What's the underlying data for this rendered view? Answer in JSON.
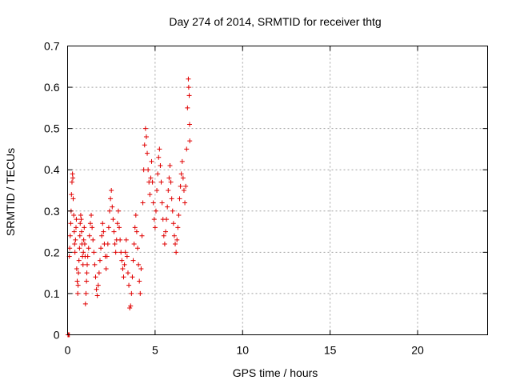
{
  "chart_data": {
    "type": "scatter",
    "title": "Day 274 of 2014, SRMTID for receiver thtg",
    "xlabel": "GPS time / hours",
    "ylabel": "SRMTID / TECUs",
    "xlim": [
      0,
      24
    ],
    "ylim": [
      0,
      0.7
    ],
    "xticks": [
      0,
      5,
      10,
      15,
      20
    ],
    "xtick_labels": [
      "0",
      "5",
      "10",
      "15",
      "20"
    ],
    "yticks": [
      0,
      0.1,
      0.2,
      0.3,
      0.4,
      0.5,
      0.6,
      0.7
    ],
    "ytick_labels": [
      "0",
      "0.1",
      "0.2",
      "0.3",
      "0.4",
      "0.5",
      "0.6",
      "0.7"
    ],
    "grid": true,
    "marker": "plus",
    "colors": {
      "series": "#e00000",
      "grid": "#a0a0a0",
      "axes": "#000000"
    },
    "series": [
      {
        "name": "SRMTID",
        "points": [
          [
            0.02,
            0.0
          ],
          [
            0.05,
            0.0
          ],
          [
            0.1,
            0.0
          ],
          [
            0.1,
            0.19
          ],
          [
            0.12,
            0.21
          ],
          [
            0.15,
            0.24
          ],
          [
            0.18,
            0.27
          ],
          [
            0.2,
            0.3
          ],
          [
            0.22,
            0.34
          ],
          [
            0.25,
            0.37
          ],
          [
            0.28,
            0.39
          ],
          [
            0.3,
            0.38
          ],
          [
            0.32,
            0.33
          ],
          [
            0.35,
            0.29
          ],
          [
            0.38,
            0.25
          ],
          [
            0.4,
            0.22
          ],
          [
            0.42,
            0.2
          ],
          [
            0.45,
            0.23
          ],
          [
            0.48,
            0.26
          ],
          [
            0.5,
            0.28
          ],
          [
            0.52,
            0.16
          ],
          [
            0.55,
            0.13
          ],
          [
            0.58,
            0.1
          ],
          [
            0.6,
            0.12
          ],
          [
            0.62,
            0.15
          ],
          [
            0.65,
            0.18
          ],
          [
            0.68,
            0.21
          ],
          [
            0.7,
            0.24
          ],
          [
            0.72,
            0.27
          ],
          [
            0.75,
            0.29
          ],
          [
            0.78,
            0.28
          ],
          [
            0.8,
            0.25
          ],
          [
            0.82,
            0.22
          ],
          [
            0.85,
            0.19
          ],
          [
            0.88,
            0.17
          ],
          [
            0.9,
            0.2
          ],
          [
            0.92,
            0.23
          ],
          [
            0.95,
            0.26
          ],
          [
            0.98,
            0.22
          ],
          [
            1.0,
            0.19
          ],
          [
            1.02,
            0.075
          ],
          [
            1.05,
            0.1
          ],
          [
            1.08,
            0.13
          ],
          [
            1.1,
            0.15
          ],
          [
            1.12,
            0.17
          ],
          [
            1.15,
            0.19
          ],
          [
            1.2,
            0.21
          ],
          [
            1.25,
            0.24
          ],
          [
            1.3,
            0.27
          ],
          [
            1.35,
            0.29
          ],
          [
            1.4,
            0.26
          ],
          [
            1.45,
            0.23
          ],
          [
            1.5,
            0.2
          ],
          [
            1.55,
            0.17
          ],
          [
            1.6,
            0.14
          ],
          [
            1.65,
            0.11
          ],
          [
            1.7,
            0.095
          ],
          [
            1.75,
            0.12
          ],
          [
            1.8,
            0.15
          ],
          [
            1.85,
            0.18
          ],
          [
            1.9,
            0.21
          ],
          [
            1.95,
            0.24
          ],
          [
            2.0,
            0.27
          ],
          [
            2.05,
            0.25
          ],
          [
            2.1,
            0.22
          ],
          [
            2.15,
            0.19
          ],
          [
            2.2,
            0.16
          ],
          [
            2.25,
            0.19
          ],
          [
            2.3,
            0.22
          ],
          [
            2.35,
            0.26
          ],
          [
            2.4,
            0.3
          ],
          [
            2.45,
            0.33
          ],
          [
            2.5,
            0.35
          ],
          [
            2.55,
            0.31
          ],
          [
            2.6,
            0.28
          ],
          [
            2.65,
            0.25
          ],
          [
            2.7,
            0.22
          ],
          [
            2.75,
            0.2
          ],
          [
            2.8,
            0.23
          ],
          [
            2.85,
            0.27
          ],
          [
            2.9,
            0.3
          ],
          [
            2.95,
            0.26
          ],
          [
            3.0,
            0.23
          ],
          [
            3.05,
            0.2
          ],
          [
            3.1,
            0.18
          ],
          [
            3.15,
            0.16
          ],
          [
            3.2,
            0.14
          ],
          [
            3.25,
            0.17
          ],
          [
            3.3,
            0.2
          ],
          [
            3.35,
            0.23
          ],
          [
            3.4,
            0.19
          ],
          [
            3.45,
            0.15
          ],
          [
            3.5,
            0.12
          ],
          [
            3.55,
            0.065
          ],
          [
            3.6,
            0.07
          ],
          [
            3.65,
            0.1
          ],
          [
            3.7,
            0.14
          ],
          [
            3.75,
            0.18
          ],
          [
            3.8,
            0.22
          ],
          [
            3.85,
            0.26
          ],
          [
            3.9,
            0.29
          ],
          [
            3.95,
            0.25
          ],
          [
            4.0,
            0.21
          ],
          [
            4.05,
            0.17
          ],
          [
            4.1,
            0.13
          ],
          [
            4.15,
            0.1
          ],
          [
            4.2,
            0.16
          ],
          [
            4.25,
            0.24
          ],
          [
            4.3,
            0.32
          ],
          [
            4.35,
            0.4
          ],
          [
            4.4,
            0.46
          ],
          [
            4.45,
            0.5
          ],
          [
            4.5,
            0.48
          ],
          [
            4.55,
            0.44
          ],
          [
            4.6,
            0.4
          ],
          [
            4.65,
            0.37
          ],
          [
            4.7,
            0.34
          ],
          [
            4.75,
            0.38
          ],
          [
            4.8,
            0.42
          ],
          [
            4.85,
            0.37
          ],
          [
            4.9,
            0.32
          ],
          [
            4.95,
            0.28
          ],
          [
            5.0,
            0.26
          ],
          [
            5.05,
            0.3
          ],
          [
            5.1,
            0.35
          ],
          [
            5.15,
            0.39
          ],
          [
            5.2,
            0.43
          ],
          [
            5.25,
            0.45
          ],
          [
            5.3,
            0.41
          ],
          [
            5.35,
            0.37
          ],
          [
            5.4,
            0.32
          ],
          [
            5.45,
            0.28
          ],
          [
            5.5,
            0.24
          ],
          [
            5.55,
            0.22
          ],
          [
            5.6,
            0.25
          ],
          [
            5.65,
            0.28
          ],
          [
            5.7,
            0.31
          ],
          [
            5.75,
            0.35
          ],
          [
            5.8,
            0.38
          ],
          [
            5.85,
            0.41
          ],
          [
            5.9,
            0.37
          ],
          [
            5.95,
            0.33
          ],
          [
            6.0,
            0.3
          ],
          [
            6.05,
            0.27
          ],
          [
            6.1,
            0.24
          ],
          [
            6.15,
            0.22
          ],
          [
            6.2,
            0.2
          ],
          [
            6.25,
            0.23
          ],
          [
            6.3,
            0.26
          ],
          [
            6.35,
            0.29
          ],
          [
            6.4,
            0.33
          ],
          [
            6.45,
            0.36
          ],
          [
            6.5,
            0.39
          ],
          [
            6.55,
            0.42
          ],
          [
            6.6,
            0.38
          ],
          [
            6.65,
            0.35
          ],
          [
            6.7,
            0.32
          ],
          [
            6.75,
            0.36
          ],
          [
            6.8,
            0.45
          ],
          [
            6.85,
            0.55
          ],
          [
            6.9,
            0.62
          ],
          [
            6.92,
            0.6
          ],
          [
            6.95,
            0.58
          ],
          [
            6.97,
            0.51
          ],
          [
            6.98,
            0.47
          ]
        ]
      }
    ]
  }
}
